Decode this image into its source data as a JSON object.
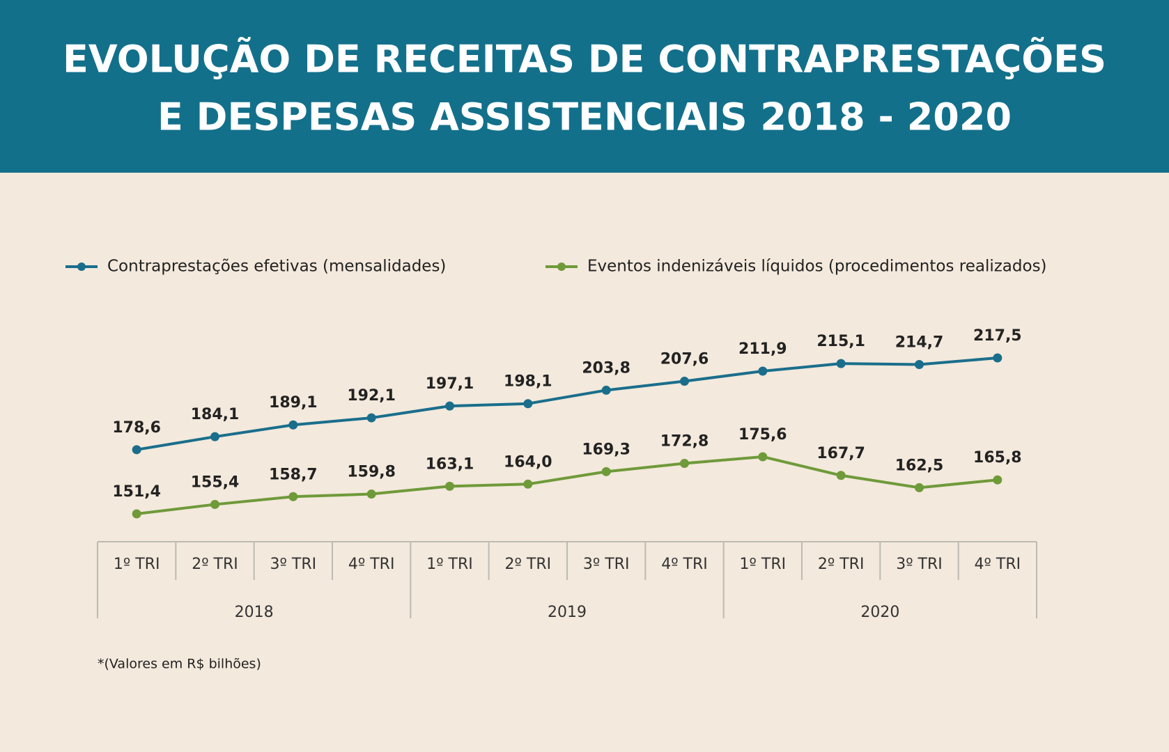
{
  "chart_data": {
    "type": "line",
    "title": [
      "EVOLUÇÃO DE RECEITAS DE CONTRAPRESTAÇÕES",
      "E DESPESAS ASSISTENCIAIS 2018 - 2020"
    ],
    "categories": [
      "1º TRI",
      "2º TRI",
      "3º TRI",
      "4º TRI",
      "1º TRI",
      "2º TRI",
      "3º TRI",
      "4º TRI",
      "1º TRI",
      "2º TRI",
      "3º TRI",
      "4º TRI"
    ],
    "groups": [
      "2018",
      "2019",
      "2020"
    ],
    "series": [
      {
        "name": "Contraprestações efetivas (mensalidades)",
        "color": "#1a6e8c",
        "values": [
          178.6,
          184.1,
          189.1,
          192.1,
          197.1,
          198.1,
          203.8,
          207.6,
          211.9,
          215.1,
          214.7,
          217.5
        ],
        "value_labels": [
          "178,6",
          "184,1",
          "189,1",
          "192,1",
          "197,1",
          "198,1",
          "203,8",
          "207,6",
          "211,9",
          "215,1",
          "214,7",
          "217,5"
        ]
      },
      {
        "name": "Eventos indenizáveis líquidos (procedimentos realizados)",
        "color": "#6f9a3a",
        "values": [
          151.4,
          155.4,
          158.7,
          159.8,
          163.1,
          164.0,
          169.3,
          172.8,
          175.6,
          167.7,
          162.5,
          165.8
        ],
        "value_labels": [
          "151,4",
          "155,4",
          "158,7",
          "159,8",
          "163,1",
          "164,0",
          "169,3",
          "172,8",
          "175,6",
          "167,7",
          "162,5",
          "165,8"
        ]
      }
    ],
    "note": "*(Valores em R$ bilhões)"
  }
}
